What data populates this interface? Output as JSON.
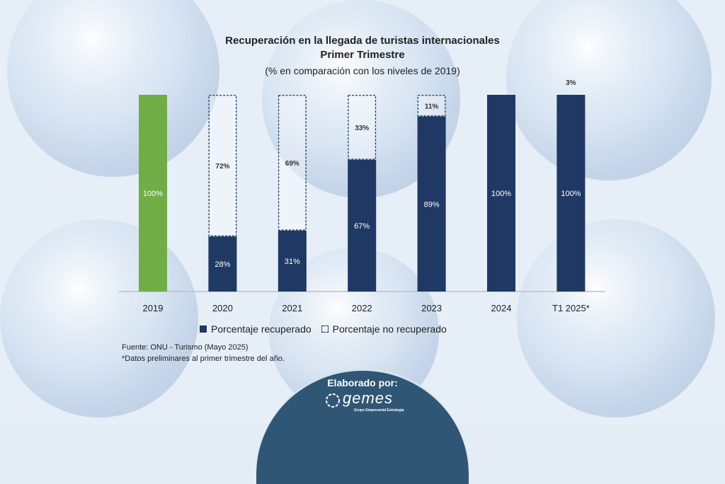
{
  "title_line1": "Recuperación en la llegada de turistas internacionales",
  "title_line2": "Primer Trimestre",
  "subtitle": "(% en comparación con los niveles de 2019)",
  "legend": {
    "recovered": "Porcentaje recuperado",
    "not_recovered": "Porcentaje no recuperado"
  },
  "source_line1": "Fuente: ONU -   Turismo (Mayo 2025)",
  "source_line2": "*Datos preliminares al primer trimestre del año.",
  "footer": {
    "made_by": "Elaborado por:",
    "logo_text": "gemes",
    "logo_sub": "Grupo Empresarial Estrategia"
  },
  "colors": {
    "recovered": "#1f3864",
    "baseline_2019": "#70ad47",
    "not_recovered_border": "#1f3864"
  },
  "chart_data": {
    "type": "bar",
    "stacked": true,
    "categories": [
      "2019",
      "2020",
      "2021",
      "2022",
      "2023",
      "2024",
      "T1 2025*"
    ],
    "series": [
      {
        "name": "Porcentaje recuperado",
        "values": [
          100,
          28,
          31,
          67,
          89,
          100,
          100
        ],
        "labels": [
          "100%",
          "28%",
          "31%",
          "67%",
          "89%",
          "100%",
          "100%"
        ]
      },
      {
        "name": "Porcentaje no recuperado",
        "values": [
          0,
          72,
          69,
          33,
          11,
          0,
          3
        ],
        "labels": [
          "",
          "72%",
          "69%",
          "33%",
          "11%",
          "",
          "3%"
        ]
      }
    ],
    "ylim": [
      0,
      100
    ],
    "grid": false
  }
}
